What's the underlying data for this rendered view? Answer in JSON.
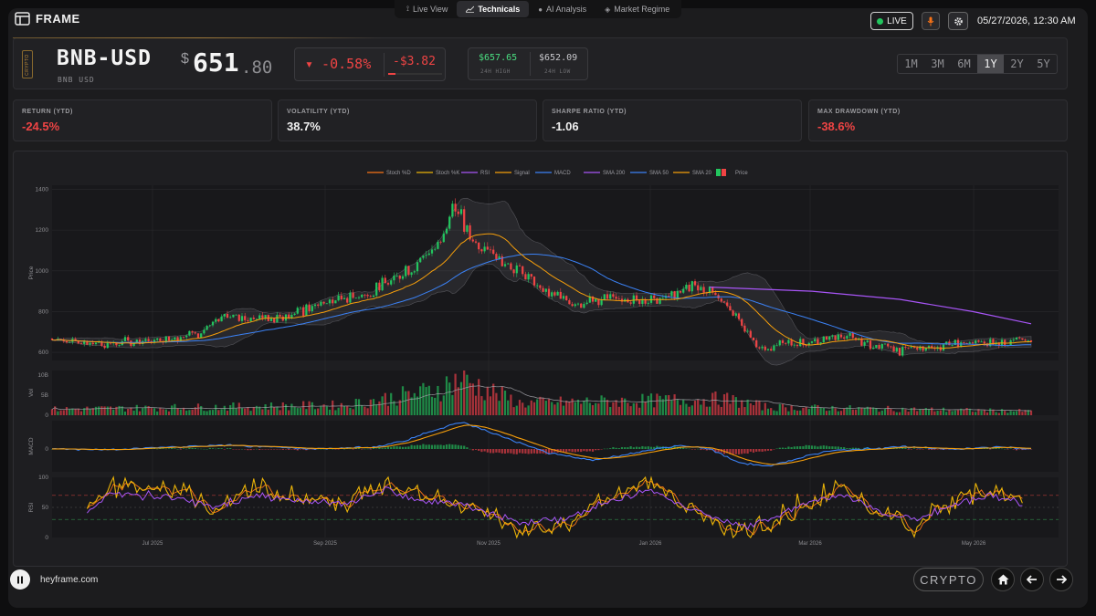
{
  "app": {
    "logo_text": "FRAME",
    "site": "heyframe.com"
  },
  "nav": {
    "tabs": [
      {
        "label": "Live View",
        "icon": "antenna-icon"
      },
      {
        "label": "Technicals",
        "icon": "chart-line-icon"
      },
      {
        "label": "AI Analysis",
        "icon": "brain-icon"
      },
      {
        "label": "Market Regime",
        "icon": "layers-icon"
      }
    ],
    "active_tab": "Technicals",
    "live_label": "LIVE",
    "datetime": "05/27/2026, 12:30 AM"
  },
  "asset": {
    "tag": "CRYPTO",
    "symbol": "BNB-USD",
    "name": "BNB USD",
    "currency_symbol": "$",
    "price_int": "651",
    "price_dec": ".80",
    "change_pct": "▾ -0.58%",
    "change_abs": "-$3.82",
    "high": "$657.65",
    "high_label": "24H HIGH",
    "low": "$652.09",
    "low_label": "24H LOW"
  },
  "ranges": [
    "1M",
    "3M",
    "6M",
    "1Y",
    "2Y",
    "5Y"
  ],
  "active_range": "1Y",
  "stats": [
    {
      "label": "RETURN (YTD)",
      "value": "-24.5%",
      "tone": "neg"
    },
    {
      "label": "VOLATILITY (YTD)",
      "value": "38.7%",
      "tone": "neutral"
    },
    {
      "label": "SHARPE RATIO (YTD)",
      "value": "-1.06",
      "tone": "neutral"
    },
    {
      "label": "MAX DRAWDOWN (YTD)",
      "value": "-38.6%",
      "tone": "neg"
    }
  ],
  "footer": {
    "badge": "CRYPTO"
  },
  "colors": {
    "up": "#22c55e",
    "down": "#ef4444",
    "sma20": "#f59e0b",
    "sma50": "#3b82f6",
    "sma200": "#a855f7",
    "macd": "#3b82f6",
    "signal": "#f59e0b",
    "rsi": "#a855f7",
    "stoch_k": "#eab308",
    "stoch_d": "#f97316"
  },
  "chart_data": {
    "type": "line",
    "legend": [
      "Stoch %D",
      "Stoch %K",
      "RSI",
      "Signal",
      "MACD",
      "SMA 200",
      "SMA 50",
      "SMA 20",
      "Price"
    ],
    "x_tick_labels": [
      "Jul 2025",
      "Sep 2025",
      "Nov 2025",
      "Jan 2026",
      "Mar 2026",
      "May 2026"
    ],
    "price_panel": {
      "ylabel": "Price",
      "yticks": [
        600,
        800,
        1000,
        1200,
        1400
      ],
      "ylim": [
        560,
        1420
      ]
    },
    "volume_panel": {
      "ylabel": "Vol",
      "yticks": [
        "0",
        "5B",
        "10B"
      ]
    },
    "macd_panel": {
      "ylabel": "MACD",
      "yticks": [
        0
      ]
    },
    "rsi_panel": {
      "ylabel": "RSI",
      "yticks": [
        0,
        50,
        100
      ],
      "ylim": [
        0,
        100
      ]
    },
    "anchors": {
      "price": [
        [
          0,
          668
        ],
        [
          10,
          650
        ],
        [
          20,
          640
        ],
        [
          35,
          660
        ],
        [
          50,
          700
        ],
        [
          60,
          770
        ],
        [
          70,
          770
        ],
        [
          80,
          780
        ],
        [
          95,
          850
        ],
        [
          110,
          900
        ],
        [
          118,
          980
        ],
        [
          126,
          1050
        ],
        [
          133,
          1150
        ],
        [
          137,
          1330
        ],
        [
          140,
          1250
        ],
        [
          143,
          1150
        ],
        [
          150,
          1100
        ],
        [
          160,
          1000
        ],
        [
          170,
          880
        ],
        [
          180,
          850
        ],
        [
          190,
          860
        ],
        [
          200,
          850
        ],
        [
          210,
          880
        ],
        [
          220,
          920
        ],
        [
          225,
          900
        ],
        [
          232,
          810
        ],
        [
          238,
          700
        ],
        [
          242,
          620
        ],
        [
          250,
          640
        ],
        [
          260,
          650
        ],
        [
          270,
          680
        ],
        [
          280,
          640
        ],
        [
          290,
          610
        ],
        [
          300,
          625
        ],
        [
          310,
          640
        ],
        [
          320,
          650
        ],
        [
          330,
          660
        ],
        [
          335,
          645
        ]
      ],
      "sma200": [
        [
          225,
          920
        ],
        [
          260,
          900
        ],
        [
          290,
          860
        ],
        [
          315,
          800
        ],
        [
          335,
          740
        ]
      ],
      "rsi": [
        [
          0,
          40
        ],
        [
          12,
          45
        ],
        [
          20,
          75
        ],
        [
          30,
          70
        ],
        [
          45,
          65
        ],
        [
          55,
          50
        ],
        [
          70,
          70
        ],
        [
          85,
          60
        ],
        [
          100,
          55
        ],
        [
          115,
          80
        ],
        [
          128,
          60
        ],
        [
          140,
          55
        ],
        [
          150,
          40
        ],
        [
          160,
          25
        ],
        [
          175,
          30
        ],
        [
          190,
          60
        ],
        [
          205,
          80
        ],
        [
          215,
          55
        ],
        [
          228,
          30
        ],
        [
          238,
          20
        ],
        [
          248,
          35
        ],
        [
          260,
          60
        ],
        [
          272,
          70
        ],
        [
          285,
          40
        ],
        [
          295,
          30
        ],
        [
          308,
          55
        ],
        [
          320,
          70
        ],
        [
          330,
          60
        ],
        [
          335,
          35
        ]
      ],
      "macd": [
        [
          0,
          0
        ],
        [
          20,
          -2
        ],
        [
          40,
          5
        ],
        [
          60,
          10
        ],
        [
          90,
          0
        ],
        [
          110,
          5
        ],
        [
          120,
          20
        ],
        [
          135,
          60
        ],
        [
          140,
          70
        ],
        [
          155,
          30
        ],
        [
          170,
          -10
        ],
        [
          185,
          -30
        ],
        [
          200,
          -10
        ],
        [
          215,
          10
        ],
        [
          225,
          0
        ],
        [
          235,
          -35
        ],
        [
          245,
          -45
        ],
        [
          265,
          -5
        ],
        [
          290,
          5
        ],
        [
          310,
          0
        ],
        [
          325,
          5
        ],
        [
          335,
          0
        ]
      ],
      "volume": [
        [
          0,
          1.5
        ],
        [
          100,
          2.5
        ],
        [
          130,
          6
        ],
        [
          140,
          9
        ],
        [
          160,
          3
        ],
        [
          230,
          4
        ],
        [
          245,
          2
        ],
        [
          335,
          1
        ]
      ]
    }
  }
}
